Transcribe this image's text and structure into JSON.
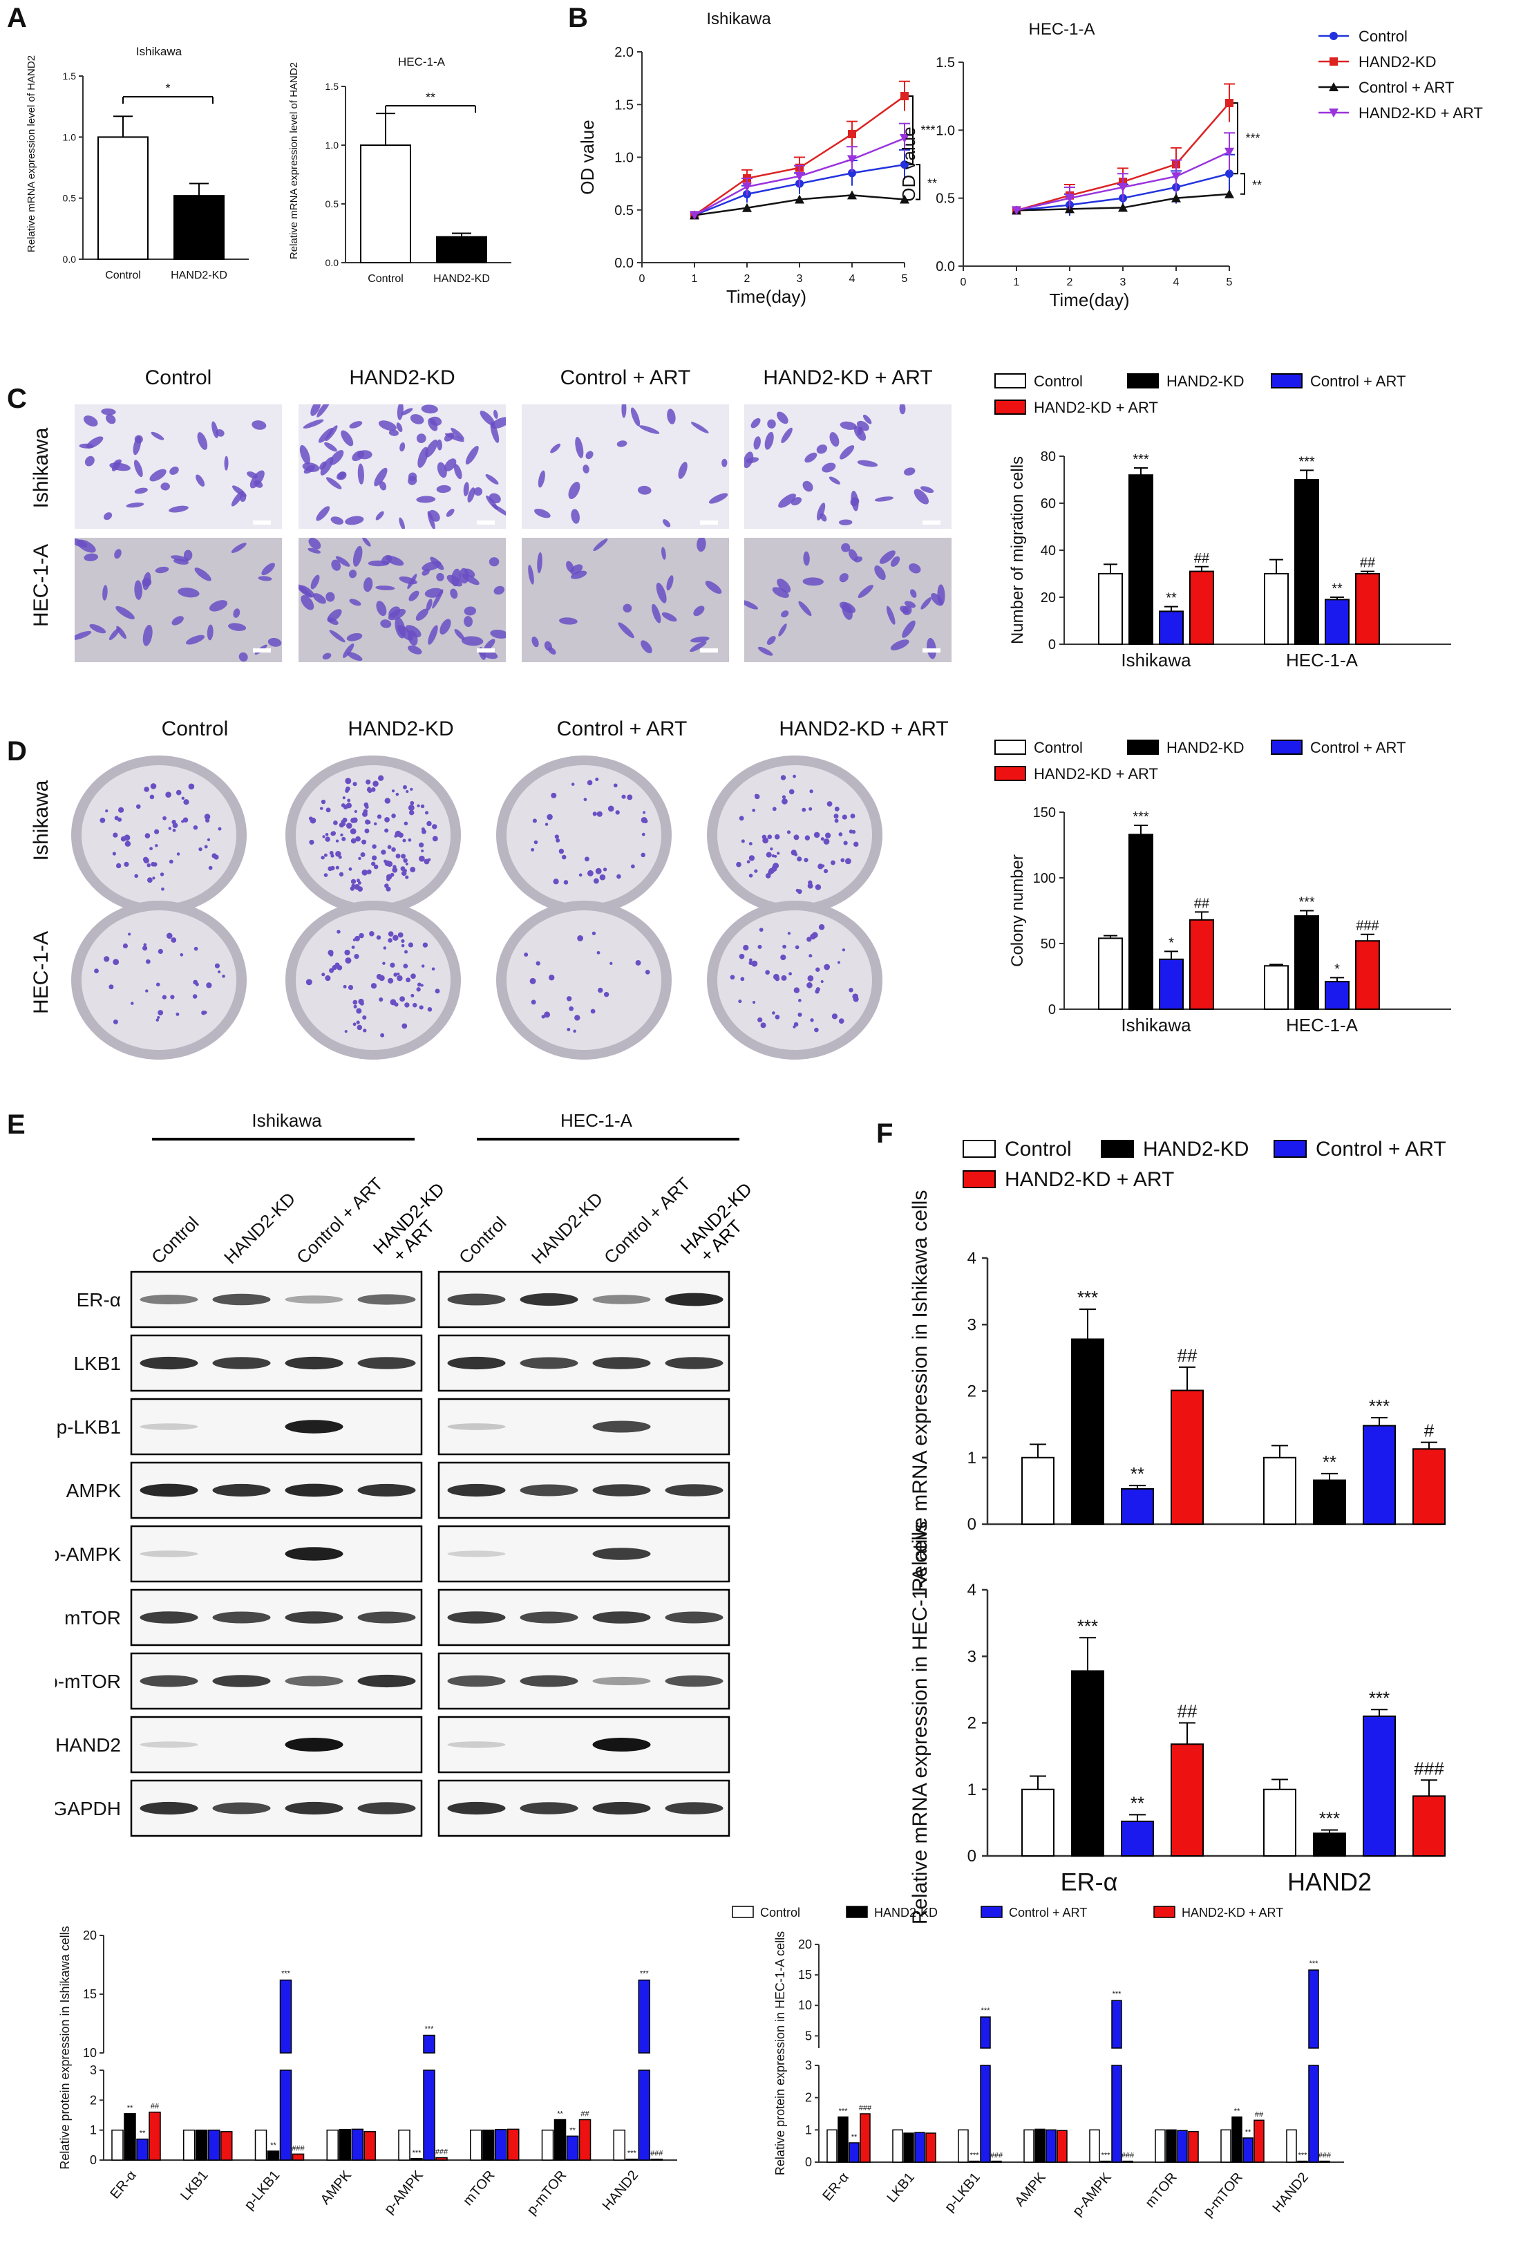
{
  "panels": {
    "A": {
      "letter": "A",
      "charts": [
        {
          "title": "Ishikawa",
          "ylabel": "Relative mRNA expression level of HAND2",
          "ylim": [
            0,
            1.5
          ],
          "yticks": [
            "0.0",
            "0.5",
            "1.0",
            "1.5"
          ],
          "categories": [
            "Control",
            "HAND2-KD"
          ],
          "values": [
            1.0,
            0.52
          ],
          "errors": [
            0.17,
            0.1
          ],
          "sig": "*"
        },
        {
          "title": "HEC-1-A",
          "ylabel": "Relative mRNA expression level of HAND2",
          "ylim": [
            0,
            1.5
          ],
          "yticks": [
            "0.0",
            "0.5",
            "1.0",
            "1.5"
          ],
          "categories": [
            "Control",
            "HAND2-KD"
          ],
          "values": [
            1.0,
            0.22
          ],
          "errors": [
            0.27,
            0.03
          ],
          "sig": "**"
        }
      ]
    },
    "B": {
      "letter": "B",
      "legend": [
        "Control",
        "HAND2-KD",
        "Control + ART",
        "HAND2-KD + ART"
      ],
      "colors": [
        "#2233dd",
        "#dd2222",
        "#111111",
        "#9933dd"
      ],
      "charts": [
        {
          "title": "Ishikawa",
          "xlabel": "Time(day)",
          "ylabel": "OD value",
          "ylim": [
            0,
            2.0
          ],
          "yticks": [
            "0.0",
            "0.5",
            "1.0",
            "1.5",
            "2.0"
          ],
          "xticks": [
            "0",
            "1",
            "2",
            "3",
            "4",
            "5"
          ],
          "x": [
            1,
            2,
            3,
            4,
            5
          ],
          "series": [
            {
              "name": "Control",
              "values": [
                0.45,
                0.65,
                0.75,
                0.85,
                0.93
              ]
            },
            {
              "name": "HAND2-KD",
              "values": [
                0.45,
                0.8,
                0.9,
                1.22,
                1.58
              ]
            },
            {
              "name": "Control + ART",
              "values": [
                0.45,
                0.52,
                0.6,
                0.64,
                0.6
              ]
            },
            {
              "name": "HAND2-KD + ART",
              "values": [
                0.45,
                0.72,
                0.82,
                0.98,
                1.18
              ]
            }
          ],
          "sig": [
            "***",
            "**"
          ]
        },
        {
          "title": "HEC-1-A",
          "xlabel": "Time(day)",
          "ylabel": "OD value",
          "ylim": [
            0,
            1.5
          ],
          "yticks": [
            "0.0",
            "0.5",
            "1.0",
            "1.5"
          ],
          "xticks": [
            "0",
            "1",
            "2",
            "3",
            "4",
            "5"
          ],
          "x": [
            1,
            2,
            3,
            4,
            5
          ],
          "series": [
            {
              "name": "Control",
              "values": [
                0.41,
                0.45,
                0.5,
                0.58,
                0.68
              ]
            },
            {
              "name": "HAND2-KD",
              "values": [
                0.41,
                0.52,
                0.62,
                0.75,
                1.2
              ]
            },
            {
              "name": "Control + ART",
              "values": [
                0.41,
                0.42,
                0.43,
                0.5,
                0.53
              ]
            },
            {
              "name": "HAND2-KD + ART",
              "values": [
                0.41,
                0.5,
                0.58,
                0.66,
                0.84
              ]
            }
          ],
          "sig": [
            "***",
            "**"
          ]
        }
      ]
    },
    "C": {
      "letter": "C",
      "columns": [
        "Control",
        "HAND2-KD",
        "Control + ART",
        "HAND2-KD + ART"
      ],
      "rows": [
        "Ishikawa",
        "HEC-1-A"
      ],
      "legend": [
        "Control",
        "HAND2-KD",
        "Control + ART",
        "HAND2-KD + ART"
      ],
      "chart": {
        "ylabel": "Number of migration cells",
        "ylim": [
          0,
          80
        ],
        "yticks": [
          "0",
          "20",
          "40",
          "60",
          "80"
        ],
        "categories": [
          "Ishikawa",
          "HEC-1-A"
        ],
        "series": [
          {
            "name": "Control",
            "values": [
              30,
              30
            ],
            "errors": [
              4,
              6
            ],
            "sig": [
              "",
              ""
            ]
          },
          {
            "name": "HAND2-KD",
            "values": [
              72,
              70
            ],
            "errors": [
              3,
              4
            ],
            "sig": [
              "***",
              "***"
            ]
          },
          {
            "name": "Control + ART",
            "values": [
              14,
              19
            ],
            "errors": [
              2,
              1
            ],
            "sig": [
              "**",
              "**"
            ]
          },
          {
            "name": "HAND2-KD + ART",
            "values": [
              31,
              30
            ],
            "errors": [
              2,
              1
            ],
            "sig": [
              "##",
              "##"
            ]
          }
        ]
      }
    },
    "D": {
      "letter": "D",
      "columns": [
        "Control",
        "HAND2-KD",
        "Control + ART",
        "HAND2-KD + ART"
      ],
      "rows": [
        "Ishikawa",
        "HEC-1-A"
      ],
      "legend": [
        "Control",
        "HAND2-KD",
        "Control + ART",
        "HAND2-KD + ART"
      ],
      "chart": {
        "ylabel": "Colony number",
        "ylim": [
          0,
          150
        ],
        "yticks": [
          "0",
          "50",
          "100",
          "150"
        ],
        "categories": [
          "Ishikawa",
          "HEC-1-A"
        ],
        "series": [
          {
            "name": "Control",
            "values": [
              54,
              33
            ],
            "errors": [
              2,
              1
            ],
            "sig": [
              "",
              ""
            ]
          },
          {
            "name": "HAND2-KD",
            "values": [
              133,
              71
            ],
            "errors": [
              7,
              4
            ],
            "sig": [
              "***",
              "***"
            ]
          },
          {
            "name": "Control + ART",
            "values": [
              38,
              21
            ],
            "errors": [
              6,
              3
            ],
            "sig": [
              "*",
              "*"
            ]
          },
          {
            "name": "HAND2-KD + ART",
            "values": [
              68,
              52
            ],
            "errors": [
              6,
              5
            ],
            "sig": [
              "##",
              "###"
            ]
          }
        ]
      }
    },
    "E": {
      "letter": "E",
      "groups": [
        "Ishikawa",
        "HEC-1-A"
      ],
      "lanes": [
        "Control",
        "HAND2-KD",
        "Control + ART",
        "HAND2-KD + ART"
      ],
      "proteins": [
        "ER-α",
        "LKB1",
        "p-LKB1",
        "AMPK",
        "p-AMPK",
        "mTOR",
        "p-mTOR",
        "HAND2",
        "GAPDH"
      ],
      "intensities": [
        [
          [
            0.5,
            0.7,
            0.3,
            0.6
          ],
          [
            0.75,
            0.85,
            0.45,
            0.9
          ]
        ],
        [
          [
            0.85,
            0.8,
            0.85,
            0.8
          ],
          [
            0.85,
            0.75,
            0.8,
            0.8
          ]
        ],
        [
          [
            0.12,
            0,
            0.95,
            0
          ],
          [
            0.15,
            0,
            0.75,
            0
          ]
        ],
        [
          [
            0.9,
            0.85,
            0.9,
            0.85
          ],
          [
            0.85,
            0.75,
            0.8,
            0.8
          ]
        ],
        [
          [
            0.12,
            0,
            0.95,
            0
          ],
          [
            0.1,
            0,
            0.8,
            0
          ]
        ],
        [
          [
            0.8,
            0.75,
            0.8,
            0.75
          ],
          [
            0.8,
            0.75,
            0.8,
            0.75
          ]
        ],
        [
          [
            0.75,
            0.8,
            0.6,
            0.85
          ],
          [
            0.7,
            0.75,
            0.35,
            0.7
          ]
        ],
        [
          [
            0.1,
            0,
            1.0,
            0
          ],
          [
            0.12,
            0,
            1.0,
            0
          ]
        ],
        [
          [
            0.85,
            0.75,
            0.85,
            0.8
          ],
          [
            0.85,
            0.8,
            0.85,
            0.8
          ]
        ]
      ]
    },
    "E_charts": {
      "legend": [
        "Control",
        "HAND2-KD",
        "Control + ART",
        "HAND2-KD + ART"
      ],
      "charts": [
        {
          "ylabel": "Relative protein expression in Ishikawa cells",
          "categories": [
            "ER-α",
            "LKB1",
            "p-LKB1",
            "AMPK",
            "p-AMPK",
            "mTOR",
            "p-mTOR",
            "HAND2"
          ],
          "yticks_low": [
            "0",
            "1",
            "2",
            "3"
          ],
          "yticks_high": [
            "10",
            "15",
            "20"
          ],
          "values": [
            [
              1.0,
              1.55,
              0.7,
              1.6
            ],
            [
              1.0,
              1.0,
              1.0,
              0.95
            ],
            [
              1.0,
              0.3,
              16.2,
              0.2
            ],
            [
              1.0,
              1.02,
              1.03,
              0.95
            ],
            [
              1.0,
              0.05,
              11.5,
              0.08
            ],
            [
              1.0,
              1.0,
              1.02,
              1.03
            ],
            [
              1.0,
              1.35,
              0.8,
              1.35
            ],
            [
              1.0,
              0.03,
              16.2,
              0.03
            ]
          ],
          "sig": [
            [
              "",
              "**",
              "**",
              "##"
            ],
            [
              "",
              "",
              "",
              ""
            ],
            [
              "",
              "**",
              "***",
              "###"
            ],
            [
              "",
              "",
              "",
              ""
            ],
            [
              "",
              "***",
              "***",
              "###"
            ],
            [
              "",
              "",
              "",
              ""
            ],
            [
              "",
              "**",
              "**",
              "##"
            ],
            [
              "",
              "***",
              "***",
              "###"
            ]
          ]
        },
        {
          "ylabel": "Relative protein expression in HEC-1-A cells",
          "categories": [
            "ER-α",
            "LKB1",
            "p-LKB1",
            "AMPK",
            "p-AMPK",
            "mTOR",
            "p-mTOR",
            "HAND2"
          ],
          "yticks_low": [
            "0",
            "1",
            "2",
            "3"
          ],
          "yticks_high": [
            "5",
            "10",
            "15",
            "20"
          ],
          "values": [
            [
              1.0,
              1.4,
              0.6,
              1.5
            ],
            [
              1.0,
              0.9,
              0.92,
              0.9
            ],
            [
              1.0,
              0.03,
              8.1,
              0.03
            ],
            [
              1.0,
              1.02,
              1.0,
              0.98
            ],
            [
              1.0,
              0.03,
              10.8,
              0.03
            ],
            [
              1.0,
              1.0,
              0.98,
              0.95
            ],
            [
              1.0,
              1.4,
              0.75,
              1.3
            ],
            [
              1.0,
              0.03,
              15.8,
              0.03
            ]
          ],
          "sig": [
            [
              "",
              "***",
              "**",
              "###"
            ],
            [
              "",
              "",
              "",
              ""
            ],
            [
              "",
              "***",
              "***",
              "###"
            ],
            [
              "",
              "",
              "",
              ""
            ],
            [
              "",
              "***",
              "***",
              "###"
            ],
            [
              "",
              "",
              "",
              ""
            ],
            [
              "",
              "**",
              "**",
              "##"
            ],
            [
              "",
              "***",
              "***",
              "###"
            ]
          ]
        }
      ]
    },
    "F": {
      "letter": "F",
      "legend": [
        "Control",
        "HAND2-KD",
        "Control + ART",
        "HAND2-KD + ART"
      ],
      "categories": [
        "ER-α",
        "HAND2"
      ],
      "charts": [
        {
          "ylabel": "Relative mRNA expression in Ishikawa cells",
          "ylim": [
            0,
            4
          ],
          "yticks": [
            "0",
            "1",
            "2",
            "3",
            "4"
          ],
          "values": [
            [
              1.0,
              2.78,
              0.53,
              2.01
            ],
            [
              1.0,
              0.66,
              1.48,
              1.13
            ]
          ],
          "errors": [
            [
              0.2,
              0.45,
              0.05,
              0.35
            ],
            [
              0.18,
              0.1,
              0.12,
              0.1
            ]
          ],
          "sig": [
            [
              "",
              "***",
              "**",
              "##"
            ],
            [
              "",
              "**",
              "***",
              "#"
            ]
          ]
        },
        {
          "ylabel": "Relative mRNA expression in HEC-1-A cells",
          "ylim": [
            0,
            4
          ],
          "yticks": [
            "0",
            "1",
            "2",
            "3",
            "4"
          ],
          "values": [
            [
              1.0,
              2.78,
              0.52,
              1.68
            ],
            [
              1.0,
              0.34,
              2.1,
              0.9
            ]
          ],
          "errors": [
            [
              0.2,
              0.5,
              0.1,
              0.32
            ],
            [
              0.15,
              0.05,
              0.1,
              0.24
            ]
          ],
          "sig": [
            [
              "",
              "***",
              "**",
              "##"
            ],
            [
              "",
              "***",
              "***",
              "###"
            ]
          ]
        }
      ]
    }
  },
  "colors": {
    "control": "#ffffff",
    "hand2kd": "#000000",
    "control_art": "#1a1aee",
    "hand2kd_art": "#ee1111",
    "stain": "#6a4fc4"
  }
}
